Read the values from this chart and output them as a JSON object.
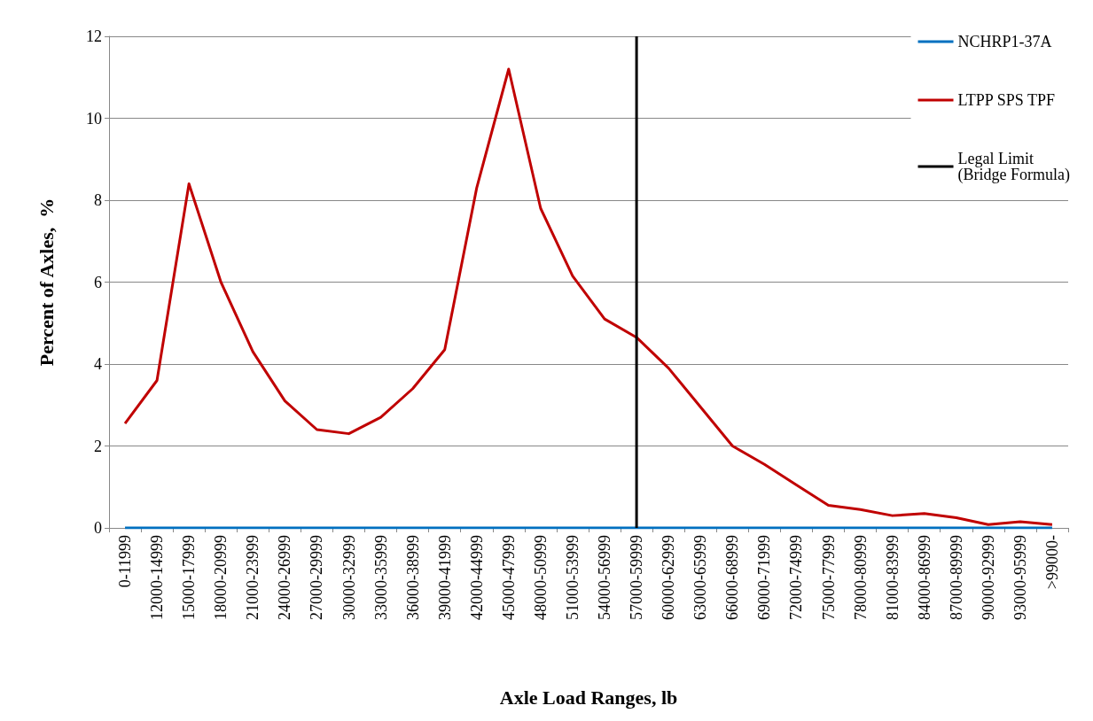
{
  "chart_data": {
    "type": "line",
    "xlabel": "Axle Load Ranges, lb",
    "ylabel": "Percent of Axles,  %",
    "categories": [
      "0-11999",
      "12000-14999",
      "15000-17999",
      "18000-20999",
      "21000-23999",
      "24000-26999",
      "27000-29999",
      "30000-32999",
      "33000-35999",
      "36000-38999",
      "39000-41999",
      "42000-44999",
      "45000-47999",
      "48000-50999",
      "51000-53999",
      "54000-56999",
      "57000-59999",
      "60000-62999",
      "63000-65999",
      "66000-68999",
      "69000-71999",
      "72000-74999",
      "75000-77999",
      "78000-80999",
      "81000-83999",
      "84000-86999",
      "87000-89999",
      "90000-92999",
      "93000-95999",
      ">99000-"
    ],
    "series": [
      {
        "name": "NCHRP1-37A",
        "color": "#0070c0",
        "values": [
          0,
          0,
          0,
          0,
          0,
          0,
          0,
          0,
          0,
          0,
          0,
          0,
          0,
          0,
          0,
          0,
          0,
          0,
          0,
          0,
          0,
          0,
          0,
          0,
          0,
          0,
          0,
          0,
          0,
          0
        ]
      },
      {
        "name": "LTPP SPS TPF",
        "color": "#c00000",
        "values": [
          2.55,
          3.6,
          8.4,
          6.0,
          4.3,
          3.1,
          2.4,
          2.3,
          2.7,
          3.4,
          4.35,
          8.3,
          11.2,
          7.8,
          6.15,
          5.1,
          4.65,
          3.9,
          2.95,
          2.0,
          1.55,
          1.05,
          0.55,
          0.45,
          0.3,
          0.35,
          0.25,
          0.08,
          0.15,
          0.08
        ]
      },
      {
        "name": "Legal Limit\n(Bridge Formula)",
        "color": "#000000",
        "x": [
          "57000-59999",
          "57000-59999"
        ],
        "values": [
          0,
          12
        ]
      }
    ],
    "ylim": [
      0,
      12
    ],
    "yticks": [
      0,
      2,
      4,
      6,
      8,
      10,
      12
    ],
    "grid": "y",
    "legend": "top right",
    "marker": "none",
    "line_style": "solid"
  }
}
